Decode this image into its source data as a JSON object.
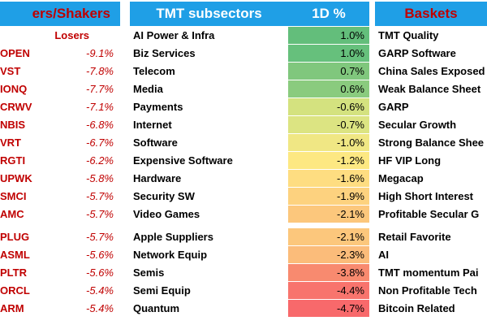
{
  "movers": {
    "title": "ers/Shakers",
    "subheader": "Losers",
    "rows": [
      {
        "ticker": "OPEN",
        "change": "-9.1%"
      },
      {
        "ticker": "VST",
        "change": "-7.8%"
      },
      {
        "ticker": "IONQ",
        "change": "-7.7%"
      },
      {
        "ticker": "CRWV",
        "change": "-7.1%"
      },
      {
        "ticker": "NBIS",
        "change": "-6.8%"
      },
      {
        "ticker": "VRT",
        "change": "-6.7%"
      },
      {
        "ticker": "RGTI",
        "change": "-6.2%"
      },
      {
        "ticker": "UPWK",
        "change": "-5.8%"
      },
      {
        "ticker": "SMCI",
        "change": "-5.7%"
      },
      {
        "ticker": "AMC",
        "change": "-5.7%"
      },
      {
        "ticker": "PLUG",
        "change": "-5.7%"
      },
      {
        "ticker": "ASML",
        "change": "-5.6%"
      },
      {
        "ticker": "PLTR",
        "change": "-5.6%"
      },
      {
        "ticker": "ORCL",
        "change": "-5.4%"
      },
      {
        "ticker": "ARM",
        "change": "-5.4%"
      }
    ]
  },
  "subsectors": {
    "title": "TMT subsectors",
    "value_header": "1D %",
    "rows": [
      {
        "name": "AI Power & Infra",
        "change": "1.0%",
        "color": "#63be7b"
      },
      {
        "name": "Biz Services",
        "change": "1.0%",
        "color": "#66c07c"
      },
      {
        "name": "Telecom",
        "change": "0.7%",
        "color": "#80c77d"
      },
      {
        "name": "Media",
        "change": "0.6%",
        "color": "#8acb7e"
      },
      {
        "name": "Payments",
        "change": "-0.6%",
        "color": "#d4e27f"
      },
      {
        "name": "Internet",
        "change": "-0.7%",
        "color": "#dce482"
      },
      {
        "name": "Software",
        "change": "-1.0%",
        "color": "#f0e784"
      },
      {
        "name": "Expensive Software",
        "change": "-1.2%",
        "color": "#fde882"
      },
      {
        "name": "Hardware",
        "change": "-1.6%",
        "color": "#fedd81"
      },
      {
        "name": "Security SW",
        "change": "-1.9%",
        "color": "#fdd27f"
      },
      {
        "name": "Video Games",
        "change": "-2.1%",
        "color": "#fcc77c"
      },
      {
        "name": "Apple Suppliers",
        "change": "-2.1%",
        "color": "#fcc77c"
      },
      {
        "name": "Network Equip",
        "change": "-2.3%",
        "color": "#fbbc7a"
      },
      {
        "name": "Semis",
        "change": "-3.8%",
        "color": "#f88a6f"
      },
      {
        "name": "Semi Equip",
        "change": "-4.4%",
        "color": "#f8746d"
      },
      {
        "name": "Quantum",
        "change": "-4.7%",
        "color": "#f8696b"
      }
    ]
  },
  "baskets": {
    "title": "Baskets",
    "rows": [
      "TMT Quality",
      "GARP Software",
      "China Sales Exposed",
      "Weak Balance Sheet",
      "GARP",
      "Secular Growth",
      "Strong Balance Shee",
      "HF VIP Long",
      "Megacap",
      "High Short Interest",
      "Profitable Secular G",
      "Retail Favorite",
      "AI",
      "TMT momentum Pai",
      "Non Profitable Tech",
      "Bitcoin Related"
    ]
  }
}
